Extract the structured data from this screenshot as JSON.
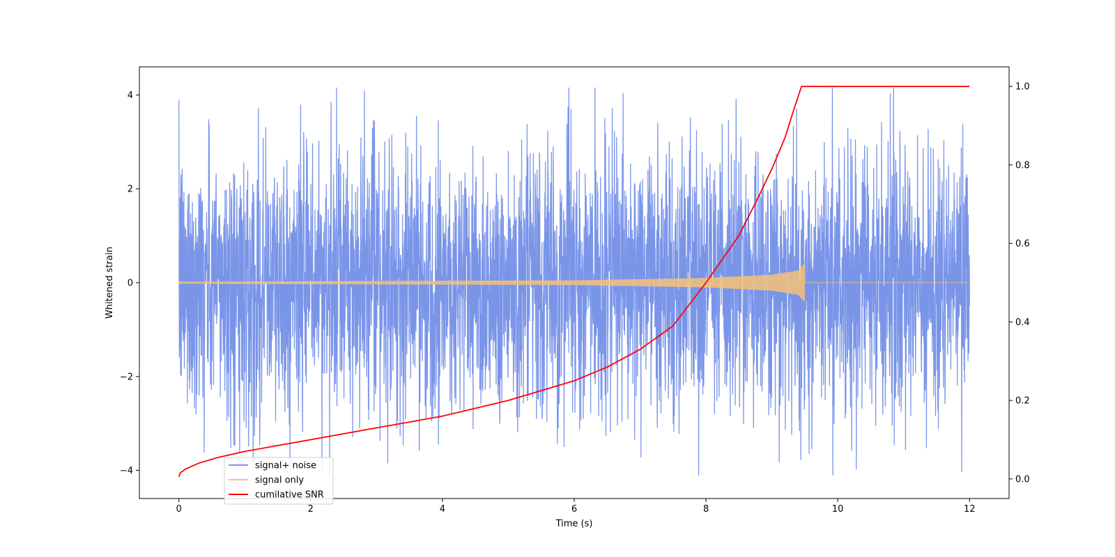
{
  "chart_data": {
    "type": "line",
    "title": "",
    "xlabel": "Time (s)",
    "ylabel": "Whitened strain",
    "y2label": "",
    "xlim": [
      -0.6,
      12.6
    ],
    "ylim": [
      -4.6,
      4.6
    ],
    "y2lim": [
      -0.05,
      1.05
    ],
    "x_ticks": [
      0,
      2,
      4,
      6,
      8,
      10,
      12
    ],
    "y_ticks": [
      -4,
      -2,
      0,
      2,
      4
    ],
    "y2_ticks": [
      0.0,
      0.2,
      0.4,
      0.6,
      0.8,
      1.0
    ],
    "x_tick_labels": [
      "0",
      "2",
      "4",
      "6",
      "8",
      "10",
      "12"
    ],
    "y_tick_labels": [
      "−4",
      "−2",
      "0",
      "2",
      "4"
    ],
    "y2_tick_labels": [
      "0.0",
      "0.2",
      "0.4",
      "0.6",
      "0.8",
      "1.0"
    ],
    "grid": false,
    "legend_position": "lower-left",
    "series": [
      {
        "name": "signal+ noise",
        "axis": "left",
        "color": "#7a95e8",
        "kind": "noise",
        "x_range": [
          0,
          12
        ],
        "typical_amplitude": 1.8,
        "peak_max": 4.15,
        "peak_min": -4.1
      },
      {
        "name": "signal only",
        "axis": "left",
        "color": "#f5c277",
        "kind": "chirp",
        "x_range": [
          0,
          12
        ],
        "merger_time": 9.5,
        "peak_amplitude": 0.42,
        "amplitude_at": [
          {
            "x": 0,
            "y": 0.02
          },
          {
            "x": 6,
            "y": 0.05
          },
          {
            "x": 8,
            "y": 0.1
          },
          {
            "x": 9,
            "y": 0.17
          },
          {
            "x": 9.4,
            "y": 0.26
          },
          {
            "x": 9.5,
            "y": 0.42
          }
        ]
      },
      {
        "name": "cumilative SNR",
        "axis": "right",
        "color": "#ff0000",
        "kind": "line",
        "points": [
          {
            "x": 0.0,
            "y": 0.005
          },
          {
            "x": 0.02,
            "y": 0.015
          },
          {
            "x": 0.1,
            "y": 0.025
          },
          {
            "x": 0.3,
            "y": 0.04
          },
          {
            "x": 0.6,
            "y": 0.055
          },
          {
            "x": 1.0,
            "y": 0.07
          },
          {
            "x": 1.5,
            "y": 0.085
          },
          {
            "x": 2.0,
            "y": 0.1
          },
          {
            "x": 2.5,
            "y": 0.115
          },
          {
            "x": 3.0,
            "y": 0.13
          },
          {
            "x": 3.5,
            "y": 0.145
          },
          {
            "x": 4.0,
            "y": 0.16
          },
          {
            "x": 4.5,
            "y": 0.18
          },
          {
            "x": 5.0,
            "y": 0.2
          },
          {
            "x": 5.5,
            "y": 0.225
          },
          {
            "x": 6.0,
            "y": 0.25
          },
          {
            "x": 6.5,
            "y": 0.285
          },
          {
            "x": 7.0,
            "y": 0.33
          },
          {
            "x": 7.5,
            "y": 0.39
          },
          {
            "x": 8.0,
            "y": 0.5
          },
          {
            "x": 8.5,
            "y": 0.62
          },
          {
            "x": 8.8,
            "y": 0.72
          },
          {
            "x": 9.0,
            "y": 0.79
          },
          {
            "x": 9.2,
            "y": 0.87
          },
          {
            "x": 9.35,
            "y": 0.95
          },
          {
            "x": 9.45,
            "y": 1.0
          },
          {
            "x": 9.5,
            "y": 1.0
          },
          {
            "x": 12.0,
            "y": 1.0
          }
        ]
      }
    ]
  }
}
